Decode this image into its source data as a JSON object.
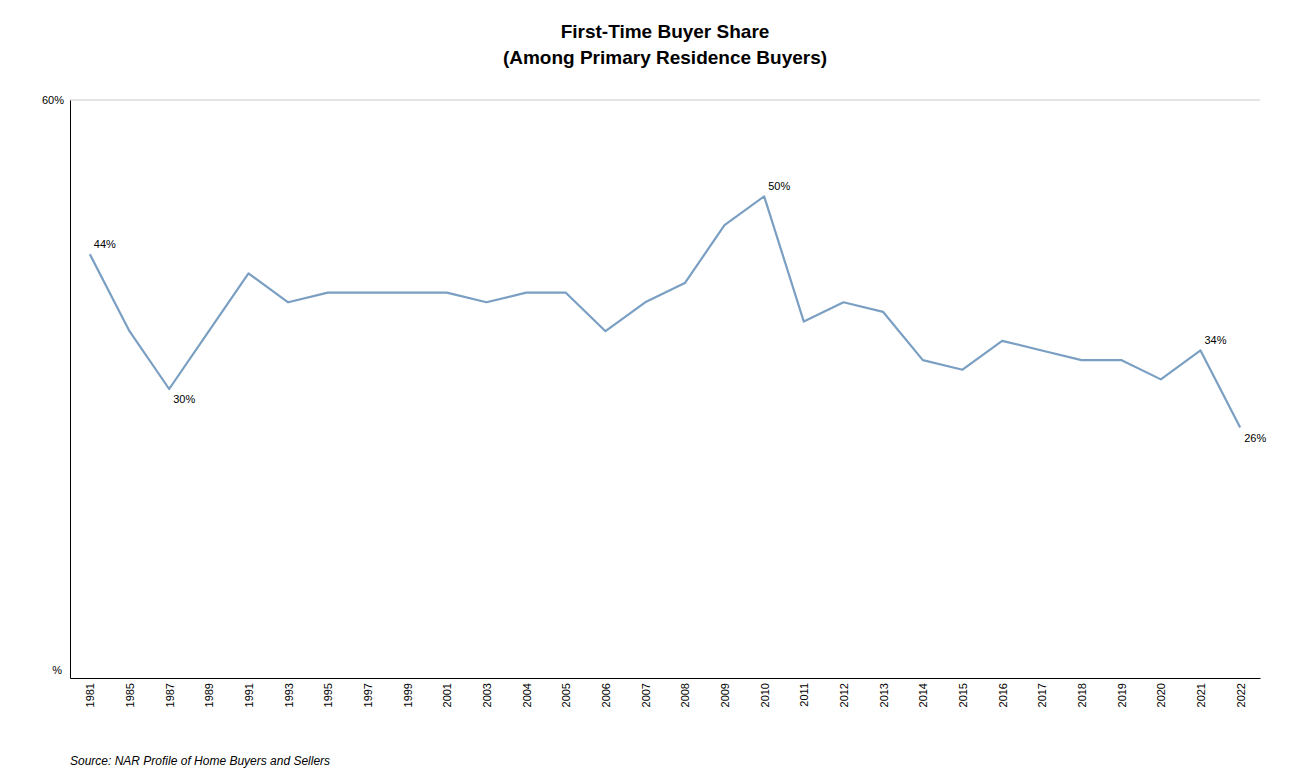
{
  "chart_data": {
    "type": "line",
    "title": "First-Time Buyer Share",
    "subtitle": "(Among Primary Residence Buyers)",
    "source": "Source: NAR Profile of Home Buyers and Sellers",
    "ylabel": "%",
    "categories": [
      "1981",
      "1985",
      "1987",
      "1989",
      "1991",
      "1993",
      "1995",
      "1997",
      "1999",
      "2001",
      "2003",
      "2004",
      "2005",
      "2006",
      "2007",
      "2008",
      "2009",
      "2010",
      "2011",
      "2012",
      "2013",
      "2014",
      "2015",
      "2016",
      "2017",
      "2018",
      "2019",
      "2020",
      "2021",
      "2022"
    ],
    "values": [
      44,
      36,
      30,
      36,
      42,
      39,
      40,
      40,
      40,
      40,
      39,
      40,
      40,
      36,
      39,
      41,
      47,
      50,
      37,
      39,
      38,
      33,
      32,
      35,
      34,
      33,
      33,
      31,
      34,
      26
    ],
    "color": "#7a9fc2",
    "ylim": [
      0,
      60
    ],
    "yticks": [
      {
        "value": 60,
        "label": "60%"
      }
    ],
    "grid": true,
    "annotations": [
      {
        "text": "44%",
        "x": "1981",
        "y": 44
      },
      {
        "text": "30%",
        "x": "1987",
        "y": 30
      },
      {
        "text": "50%",
        "x": "2010",
        "y": 50
      },
      {
        "text": "34%",
        "x": "2021",
        "y": 34
      },
      {
        "text": "26%",
        "x": "2022",
        "y": 26
      }
    ]
  }
}
